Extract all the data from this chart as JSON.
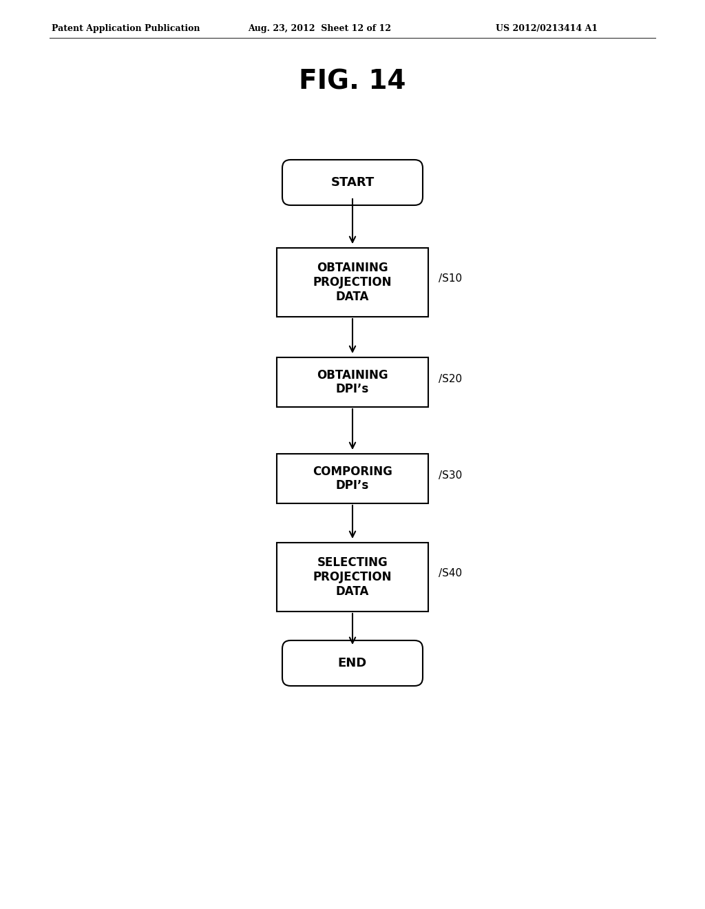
{
  "title": "FIG. 14",
  "header_left": "Patent Application Publication",
  "header_mid": "Aug. 23, 2012  Sheet 12 of 12",
  "header_right": "US 2012/0213414 A1",
  "bg_color": "#ffffff",
  "flowchart": {
    "start_label": "START",
    "end_label": "END",
    "boxes": [
      {
        "label": "OBTAINING\nPROJECTION\nDATA",
        "step": "S10"
      },
      {
        "label": "OBTAINING\nDPI’s",
        "step": "S20"
      },
      {
        "label": "COMPORING\nDPI’s",
        "step": "S30"
      },
      {
        "label": "SELECTING\nPROJECTION\nDATA",
        "step": "S40"
      }
    ]
  },
  "box_color": "#ffffff",
  "box_edge_color": "#000000",
  "text_color": "#000000",
  "arrow_color": "#000000"
}
